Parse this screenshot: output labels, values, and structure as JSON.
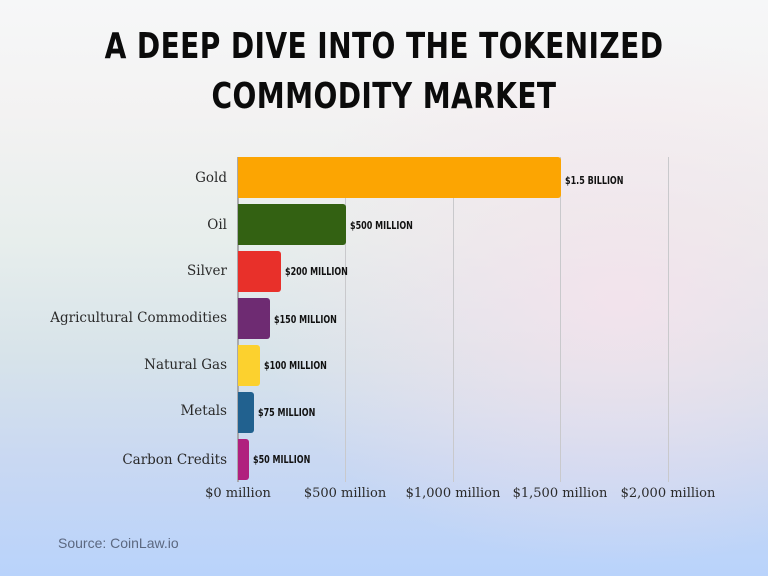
{
  "title": {
    "line1": "A Deep Dive into the Tokenized",
    "line2": "Commodity Market"
  },
  "source": "Source: CoinLaw.io",
  "colors": {
    "gold": "#FCA502",
    "oil": "#336112",
    "silver": "#E8302A",
    "agricultural": "#6E2B72",
    "natural_gas": "#FCD12E",
    "metals": "#21618F",
    "carbon_credits": "#B0207E"
  },
  "chart_data": {
    "type": "bar",
    "orientation": "horizontal",
    "title": "A Deep Dive into the Tokenized Commodity Market",
    "categories": [
      "Gold",
      "Oil",
      "Silver",
      "Agricultural Commodities",
      "Natural Gas",
      "Metals",
      "Carbon Credits"
    ],
    "values": [
      1500,
      500,
      200,
      150,
      100,
      75,
      50
    ],
    "value_unit": "USD millions",
    "data_labels": [
      "$1.5 BILLION",
      "$500 MILLION",
      "$200 MILLION",
      "$150 MILLION",
      "$100 MILLION",
      "$75 MILLION",
      "$50 MILLION"
    ],
    "bar_colors": [
      "#FCA502",
      "#336112",
      "#E8302A",
      "#6E2B72",
      "#FCD12E",
      "#21618F",
      "#B0207E"
    ],
    "xlabel": "",
    "ylabel": "",
    "xlim": [
      0,
      2000
    ],
    "x_ticks": [
      0,
      500,
      1000,
      1500,
      2000
    ],
    "x_tick_labels": [
      "$0 million",
      "$500 million",
      "$1,000 million",
      "$1,500 million",
      "$2,000 million"
    ],
    "grid": "vertical",
    "legend": "none",
    "source": "Source: CoinLaw.io"
  }
}
